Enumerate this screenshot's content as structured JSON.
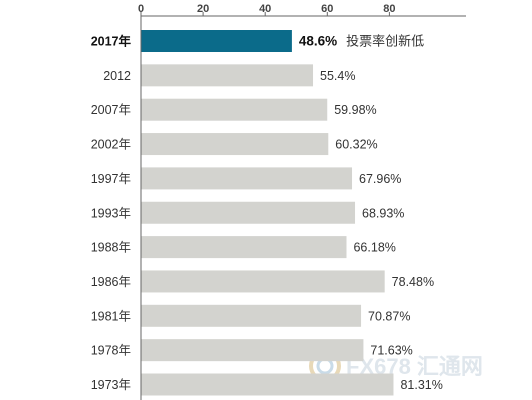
{
  "chart_data": {
    "type": "bar",
    "orientation": "horizontal",
    "categories": [
      "2017年",
      "2012",
      "2007年",
      "2002年",
      "1997年",
      "1993年",
      "1988年",
      "1986年",
      "1981年",
      "1978年",
      "1973年"
    ],
    "values": [
      48.6,
      55.4,
      59.98,
      60.32,
      67.96,
      68.93,
      66.18,
      78.48,
      70.87,
      71.63,
      81.31
    ],
    "value_labels": [
      "48.6%",
      "55.4%",
      "59.98%",
      "60.32%",
      "67.96%",
      "68.93%",
      "66.18%",
      "78.48%",
      "70.87%",
      "71.63%",
      "81.31%"
    ],
    "highlight_index": 0,
    "highlight_note": "投票率创新低",
    "x_ticks": [
      0,
      20,
      40,
      60,
      80
    ],
    "xlim": [
      0,
      100
    ],
    "xaxis_position": "top",
    "grid": false
  },
  "colors": {
    "highlight_bar": "#0b6b8a",
    "bar": "#d3d3cf",
    "axis": "#666666",
    "background": "#ffffff"
  },
  "watermark": {
    "text": "FX678 汇通网",
    "icon": "fx678-logo-icon"
  }
}
